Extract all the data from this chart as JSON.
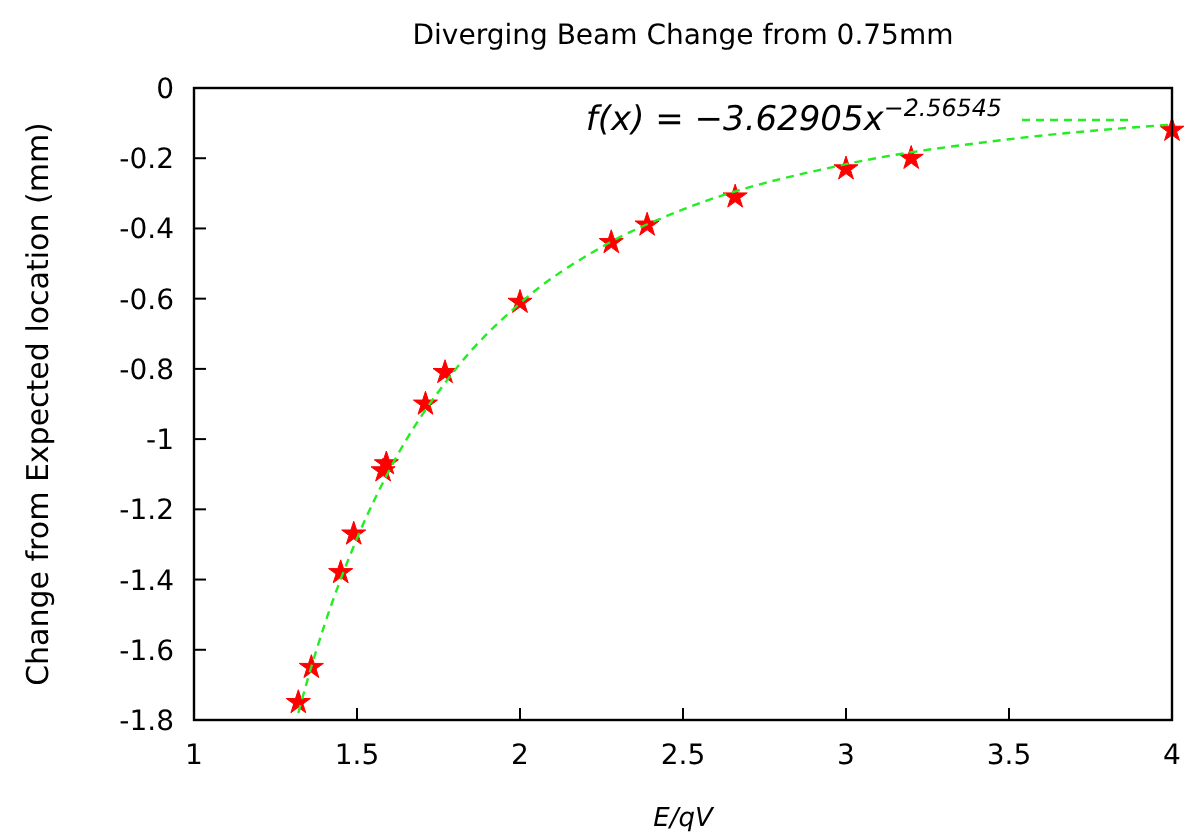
{
  "chart_data": {
    "type": "scatter",
    "title": "Diverging Beam Change from 0.75mm",
    "xlabel": "E/qV",
    "ylabel": "Change from Expected location (mm)",
    "xlim": [
      1,
      4
    ],
    "ylim": [
      -1.8,
      0
    ],
    "xticks": [
      1,
      1.5,
      2,
      2.5,
      3,
      3.5,
      4
    ],
    "yticks": [
      -1.8,
      -1.6,
      -1.4,
      -1.2,
      -1,
      -0.8,
      -0.6,
      -0.4,
      -0.2,
      0
    ],
    "grid": false,
    "legend": "top right",
    "series": [
      {
        "color": "#ff0000",
        "marker": "star",
        "x": [
          1.32,
          1.36,
          1.45,
          1.49,
          1.58,
          1.59,
          1.71,
          1.77,
          2.0,
          2.28,
          2.39,
          2.66,
          3.0,
          3.2,
          4.0
        ],
        "values": [
          -1.75,
          -1.65,
          -1.38,
          -1.27,
          -1.09,
          -1.07,
          -0.9,
          -0.81,
          -0.61,
          -0.44,
          -0.39,
          -0.31,
          -0.23,
          -0.2,
          -0.12
        ]
      },
      {
        "type": "line",
        "name": "f(x) = −3.62905x$^{−2.56545}$",
        "color": "#22ee22",
        "line_style": "dashed",
        "marker": "none",
        "x": [
          1.32,
          1.35,
          1.4,
          1.5,
          1.6,
          1.8,
          2,
          2.25,
          2.5,
          3,
          3.5,
          4
        ],
        "values": [
          -1.78,
          -1.68,
          -1.53,
          -1.283,
          -1.087,
          -0.804,
          -0.613,
          -0.453,
          -0.346,
          -0.217,
          -0.146,
          -0.104
        ]
      }
    ]
  }
}
